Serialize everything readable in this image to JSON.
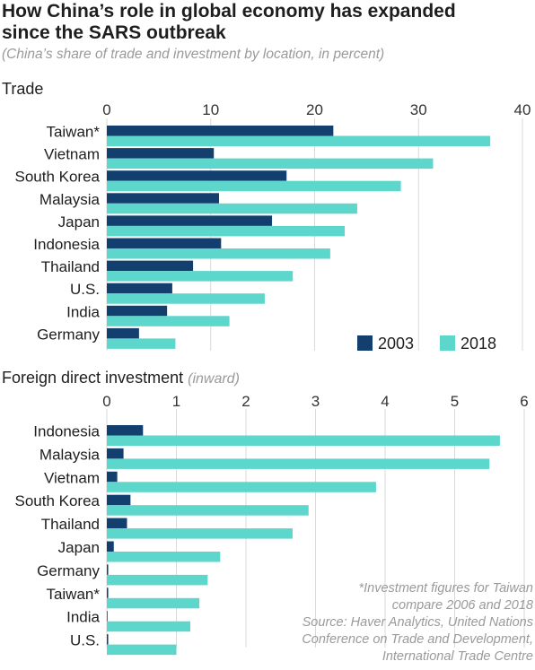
{
  "title_line1": "How China’s role in global economy has expanded",
  "title_line2": "since the SARS outbreak",
  "subtitle": "(China’s share of trade and investment by location, in percent)",
  "colors": {
    "series_2003": "#123f6e",
    "series_2018": "#5dd6cb",
    "axis_text": "#333333"
  },
  "chart_data": [
    {
      "type": "bar",
      "orientation": "horizontal",
      "title": "Trade",
      "categories": [
        "Taiwan*",
        "Vietnam",
        "South Korea",
        "Malaysia",
        "Japan",
        "Indonesia",
        "Thailand",
        "U.S.",
        "India",
        "Germany"
      ],
      "series": [
        {
          "name": "2003",
          "values": [
            21.8,
            10.3,
            17.3,
            10.8,
            15.9,
            11.0,
            8.3,
            6.3,
            5.8,
            3.1
          ]
        },
        {
          "name": "2018",
          "values": [
            36.9,
            31.4,
            28.3,
            24.1,
            22.9,
            21.5,
            17.9,
            15.2,
            11.8,
            6.6
          ]
        }
      ],
      "xlim": [
        0,
        40
      ],
      "xticks": [
        "0",
        "10",
        "20",
        "30",
        "40"
      ],
      "legend_position": "bottom-right"
    },
    {
      "type": "bar",
      "orientation": "horizontal",
      "title": "Foreign direct investment",
      "title_suffix": "(inward)",
      "categories": [
        "Indonesia",
        "Malaysia",
        "Vietnam",
        "South Korea",
        "Thailand",
        "Japan",
        "Germany",
        "Taiwan*",
        "India",
        "U.S."
      ],
      "series": [
        {
          "name": "2003",
          "values": [
            0.52,
            0.24,
            0.15,
            0.34,
            0.29,
            0.1,
            0.02,
            0.02,
            0.01,
            0.02
          ]
        },
        {
          "name": "2018",
          "values": [
            5.65,
            5.5,
            3.87,
            2.9,
            2.67,
            1.63,
            1.45,
            1.33,
            1.2,
            1.0
          ]
        }
      ],
      "xlim": [
        0,
        6
      ],
      "xticks": [
        "0",
        "1",
        "2",
        "3",
        "4",
        "5",
        "6"
      ]
    }
  ],
  "footnote": {
    "line1": "*Investment figures for Taiwan",
    "line2": "compare 2006 and 2018",
    "line3": "Source: Haver Analytics, United Nations",
    "line4": "Conference on Trade and Development,",
    "line5": "International Trade Centre"
  }
}
